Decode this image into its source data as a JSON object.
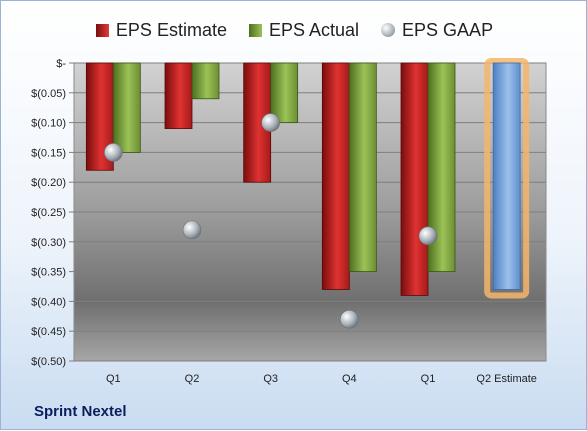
{
  "company": "Sprint Nextel",
  "legend": {
    "estimate": "EPS Estimate",
    "actual": "EPS Actual",
    "gaap": "EPS GAAP"
  },
  "colors": {
    "estimate": "#d42a2a",
    "actual": "#86ad45",
    "gaap": "#a7aeb6",
    "projected": "#7ea6dc",
    "projected_glow": "#f4b66a"
  },
  "chart_data": {
    "type": "bar",
    "categories": [
      "Q1",
      "Q2",
      "Q3",
      "Q4",
      "Q1",
      "Q2 Estimate"
    ],
    "series": [
      {
        "name": "EPS Estimate",
        "values": [
          -0.18,
          -0.11,
          -0.2,
          -0.38,
          -0.39,
          null
        ]
      },
      {
        "name": "EPS Actual",
        "values": [
          -0.15,
          -0.06,
          -0.1,
          -0.35,
          -0.35,
          null
        ]
      },
      {
        "name": "EPS GAAP",
        "values": [
          -0.15,
          -0.28,
          -0.1,
          -0.43,
          -0.29,
          null
        ]
      }
    ],
    "projected": {
      "category": "Q2 Estimate",
      "value": -0.38
    },
    "yticks": [
      "$-",
      "$(0.05)",
      "$(0.10)",
      "$(0.15)",
      "$(0.20)",
      "$(0.25)",
      "$(0.30)",
      "$(0.35)",
      "$(0.40)",
      "$(0.45)",
      "$(0.50)"
    ],
    "ylim": [
      -0.5,
      0
    ],
    "grid": true,
    "legend_position": "top"
  }
}
